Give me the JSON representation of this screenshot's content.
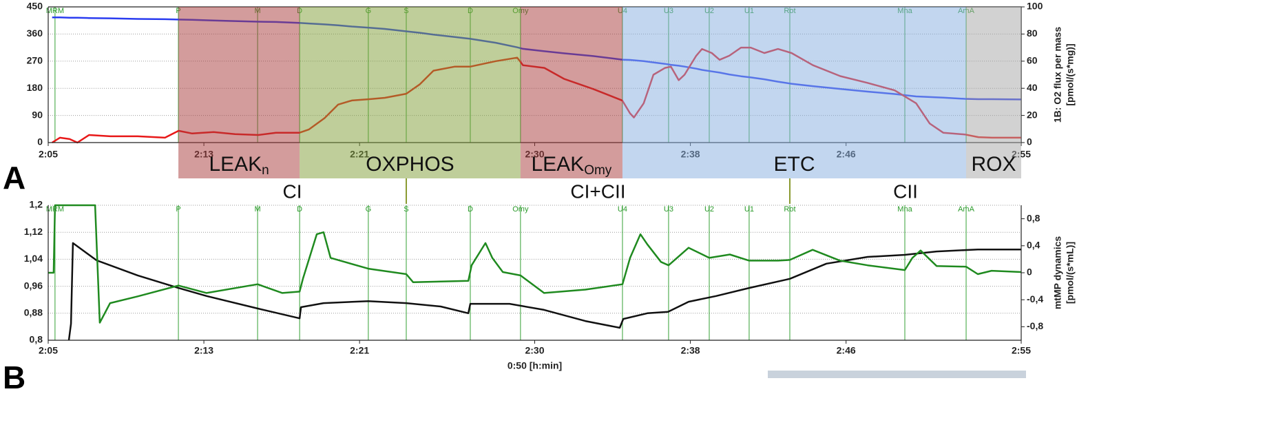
{
  "panels_note_free": null,
  "events": [
    {
      "label": "MRM",
      "x": 125.35
    },
    {
      "label": "P",
      "x": 131.69
    },
    {
      "label": "M",
      "x": 135.76
    },
    {
      "label": "D",
      "x": 137.92
    },
    {
      "label": "G",
      "x": 141.45
    },
    {
      "label": "S",
      "x": 143.4
    },
    {
      "label": "D",
      "x": 146.69
    },
    {
      "label": "Omy",
      "x": 149.27
    },
    {
      "label": "U4",
      "x": 154.51
    },
    {
      "label": "U3",
      "x": 156.88
    },
    {
      "label": "U2",
      "x": 158.97
    },
    {
      "label": "U1",
      "x": 161.02
    },
    {
      "label": "Rot",
      "x": 163.11
    },
    {
      "label": "Mna",
      "x": 169.02
    },
    {
      "label": "AmA",
      "x": 172.17
    }
  ],
  "phases": [
    {
      "label": "LEAK",
      "sub": "n",
      "start": 131.69,
      "end": 137.92,
      "color": "#a83a3a"
    },
    {
      "label": "OXPHOS",
      "start": 137.92,
      "end": 149.27,
      "color": "#7f9d35"
    },
    {
      "label": "LEAK",
      "sub": "Omy",
      "start": 149.27,
      "end": 154.51,
      "color": "#a83a3a"
    },
    {
      "label": "ETC",
      "start": 154.51,
      "end": 172.17,
      "color": "#86addf"
    },
    {
      "label": "ROX",
      "start": 172.17,
      "end": 175,
      "color": "#a6a6a6"
    }
  ],
  "complexes": [
    {
      "label": "CI",
      "start": 131.69,
      "end": 143.4
    },
    {
      "label": "CI+CII",
      "start": 143.4,
      "end": 163.11
    },
    {
      "label": "CII",
      "start": 163.11,
      "end": 175
    }
  ],
  "chart_data": [
    {
      "type": "line",
      "panel": "A",
      "y2label": [
        "1B: O2 flux per mass",
        "[pmol/(s*mg)]"
      ],
      "xlim": [
        125,
        175
      ],
      "xticks": [
        {
          "value": 125,
          "label": "2:05"
        },
        {
          "value": 133,
          "label": "2:13"
        },
        {
          "value": 141,
          "label": "2:21"
        },
        {
          "value": 150,
          "label": "2:30"
        },
        {
          "value": 158,
          "label": "2:38"
        },
        {
          "value": 166,
          "label": "2:46"
        },
        {
          "value": 175,
          "label": "2:55"
        }
      ],
      "ylim": [
        0,
        450
      ],
      "yticks": [
        0,
        90,
        180,
        270,
        360,
        450
      ],
      "y2lim": [
        0,
        100
      ],
      "y2ticks": [
        0,
        20,
        40,
        60,
        80,
        100
      ],
      "grid": true,
      "x": [
        125.2,
        125.6,
        126.1,
        126.5,
        127.1,
        128.2,
        129.6,
        131.0,
        131.7,
        132.4,
        133.5,
        134.6,
        135.8,
        136.7,
        137.9,
        138.4,
        139.2,
        139.9,
        140.6,
        141.5,
        142.3,
        143.4,
        144.1,
        144.8,
        145.9,
        146.7,
        148.0,
        149.1,
        149.4,
        150.5,
        151.5,
        153.0,
        154.5,
        154.9,
        155.1,
        155.6,
        156.1,
        156.7,
        157.0,
        157.4,
        157.7,
        158.3,
        158.6,
        159.1,
        159.5,
        160.0,
        160.6,
        161.1,
        161.8,
        162.5,
        163.2,
        164.3,
        165.7,
        167.1,
        168.5,
        169.6,
        170.3,
        171.0,
        172.1,
        172.8,
        173.5,
        175
      ],
      "series": [
        {
          "color": "#2a3cf0",
          "values": [
            415,
            415,
            414,
            414,
            413,
            412,
            410,
            409,
            408,
            407,
            405,
            403,
            401,
            400,
            397,
            395,
            392,
            389,
            385,
            381,
            377,
            369,
            364,
            358,
            350,
            344,
            331,
            316,
            311,
            303,
            296,
            287,
            275,
            274,
            273,
            270,
            266,
            261,
            258,
            255,
            252,
            245,
            241,
            236,
            232,
            226,
            220,
            216,
            210,
            202,
            195,
            187,
            178,
            169,
            161,
            153,
            151,
            149,
            145,
            144,
            144,
            143
          ]
        },
        {
          "color": "#e81818",
          "axis": "y2",
          "values": [
            0,
            3.6,
            2.6,
            0,
            5.6,
            4.6,
            4.6,
            3.6,
            8.7,
            6.7,
            7.7,
            6.2,
            5.6,
            7.2,
            7.2,
            9.7,
            18,
            28,
            31,
            32,
            33,
            36,
            43,
            53,
            56,
            56,
            60,
            62.6,
            57,
            55,
            47,
            39.5,
            31,
            21.5,
            18.5,
            29,
            50,
            55,
            56,
            46,
            50,
            64,
            69,
            66,
            61,
            64,
            70,
            70,
            66,
            69,
            66,
            57,
            49,
            44,
            38.5,
            29,
            14,
            7.2,
            6,
            4,
            3.6,
            3.6
          ]
        }
      ]
    },
    {
      "type": "line",
      "panel": "B",
      "xlabel": "0:50 [h:min]",
      "y2label": [
        "mtMP dynamics",
        "[pmol/(s*mL)]"
      ],
      "xlim": [
        125,
        175
      ],
      "xticks": [
        {
          "value": 125,
          "label": "2:05"
        },
        {
          "value": 133,
          "label": "2:13"
        },
        {
          "value": 141,
          "label": "2:21"
        },
        {
          "value": 150,
          "label": "2:30"
        },
        {
          "value": 158,
          "label": "2:38"
        },
        {
          "value": 166,
          "label": "2:46"
        },
        {
          "value": 175,
          "label": "2:55"
        }
      ],
      "ylim": [
        0.8,
        1.2
      ],
      "yticks": [
        {
          "value": 0.8,
          "label": "0,8"
        },
        {
          "value": 0.88,
          "label": "0,88"
        },
        {
          "value": 0.96,
          "label": "0,96"
        },
        {
          "value": 1.04,
          "label": "1,04"
        },
        {
          "value": 1.12,
          "label": "1,12"
        },
        {
          "value": 1.2,
          "label": "1,2"
        }
      ],
      "y2lim": [
        -1,
        1
      ],
      "y2ticks": [
        {
          "value": -0.8,
          "label": "-0,8"
        },
        {
          "value": -0.4,
          "label": "-0,4"
        },
        0,
        {
          "value": 0.4,
          "label": "0,4"
        },
        {
          "value": 0.8,
          "label": "0,8"
        }
      ],
      "grid": true,
      "series": [
        {
          "color": "#111111",
          "x": [
            126.06,
            126.17,
            126.27,
            127.48,
            129.6,
            131.69,
            133.14,
            135.76,
            137.92,
            137.99,
            139.15,
            141.45,
            143.4,
            145.17,
            146.59,
            146.69,
            148.71,
            150.48,
            152.6,
            154.37,
            154.55,
            155.79,
            156.85,
            157.91,
            159.32,
            161.02,
            163.11,
            164.99,
            167.11,
            169.02,
            170.65,
            172.77,
            175
          ],
          "values": [
            0.8,
            0.849,
            1.088,
            1.037,
            0.992,
            0.955,
            0.931,
            0.894,
            0.865,
            0.898,
            0.91,
            0.916,
            0.91,
            0.9,
            0.88,
            0.908,
            0.908,
            0.89,
            0.857,
            0.837,
            0.863,
            0.88,
            0.884,
            0.914,
            0.931,
            0.955,
            0.982,
            1.027,
            1.047,
            1.053,
            1.063,
            1.069,
            1.069
          ]
        },
        {
          "color": "#1f8a1f",
          "axis": "y2",
          "x": [
            125,
            125.28,
            125.35,
            127.41,
            127.65,
            128.18,
            129.6,
            131.69,
            133.14,
            135.76,
            137.03,
            137.92,
            138.09,
            138.8,
            139.15,
            139.51,
            141.45,
            143.4,
            143.75,
            146.59,
            146.76,
            147.47,
            147.82,
            148.36,
            149.27,
            150.48,
            152.6,
            154.51,
            154.9,
            155.43,
            155.79,
            156.49,
            156.88,
            157.91,
            158.97,
            160.03,
            161.02,
            162.51,
            163.11,
            164.28,
            165.69,
            167.11,
            169.02,
            169.41,
            169.83,
            170.65,
            172.17,
            172.77,
            173.48,
            175
          ],
          "values": [
            0,
            0,
            1,
            1,
            -0.74,
            -0.45,
            -0.35,
            -0.19,
            -0.3,
            -0.17,
            -0.3,
            -0.28,
            -0.09,
            0.57,
            0.6,
            0.22,
            0.06,
            -0.02,
            -0.14,
            -0.12,
            0.11,
            0.44,
            0.22,
            0.01,
            -0.04,
            -0.3,
            -0.25,
            -0.17,
            0.22,
            0.57,
            0.42,
            0.16,
            0.11,
            0.37,
            0.22,
            0.27,
            0.18,
            0.18,
            0.19,
            0.34,
            0.18,
            0.11,
            0.04,
            0.22,
            0.33,
            0.1,
            0.09,
            -0.02,
            0.03,
            0.01
          ]
        }
      ]
    }
  ]
}
